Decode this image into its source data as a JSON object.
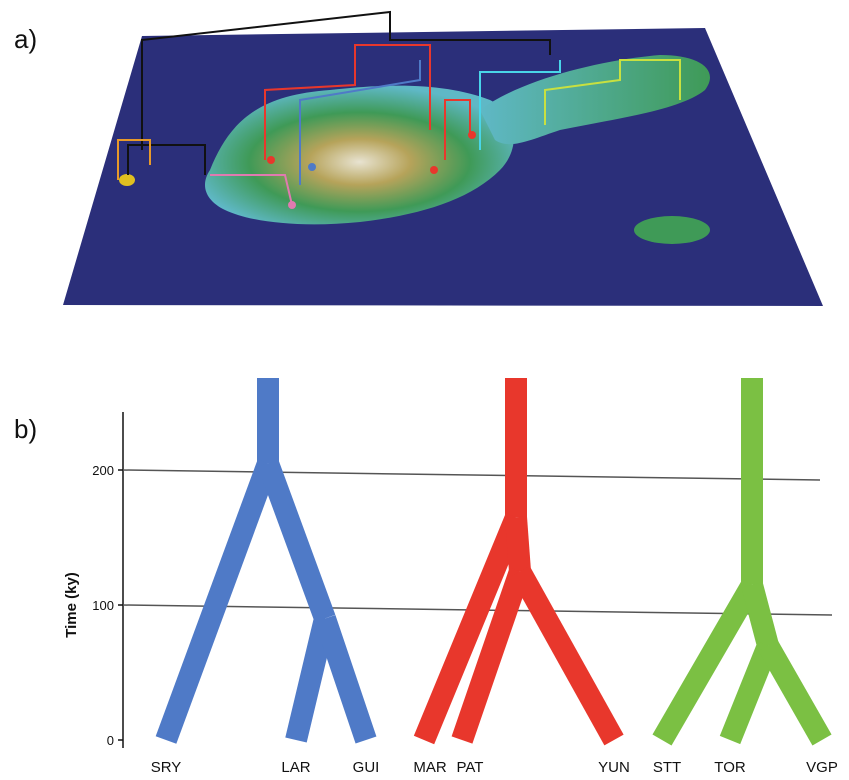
{
  "panel_labels": {
    "a": "a)",
    "b": "b)"
  },
  "map": {
    "colors": {
      "ocean": "#2b2f7a",
      "lowland": "#5fb8c6",
      "midland": "#3f9a57",
      "upland": "#b6a35a",
      "peak": "#e8e3d1"
    }
  },
  "tree": {
    "axis_title": "Time (ky)",
    "ticks": [
      {
        "value": 0,
        "label": "0"
      },
      {
        "value": 100,
        "label": "100"
      },
      {
        "value": 200,
        "label": "200"
      }
    ],
    "clades": [
      {
        "color": "#4f7ac7",
        "leaves": [
          "SRY",
          "LAR",
          "GUI"
        ]
      },
      {
        "color": "#e8372c",
        "leaves": [
          "MAR",
          "PAT",
          "YUN"
        ]
      },
      {
        "color": "#7bc043",
        "leaves": [
          "STT",
          "TOR",
          "VGP"
        ]
      }
    ]
  }
}
